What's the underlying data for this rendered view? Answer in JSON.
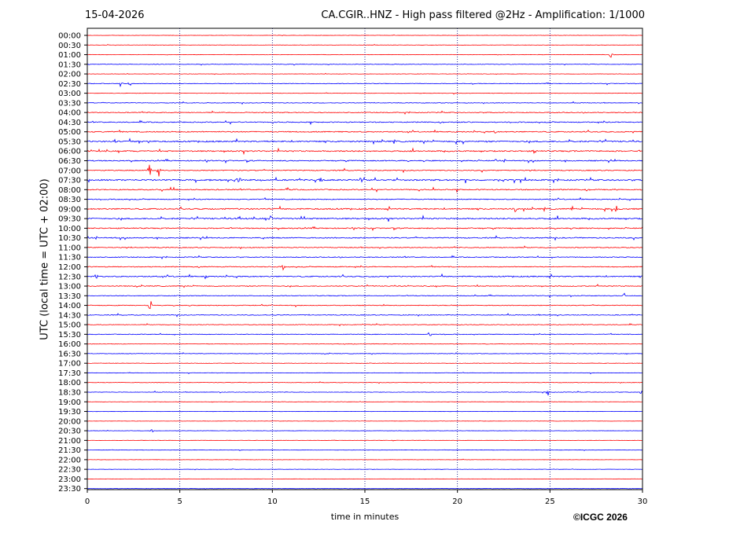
{
  "header": {
    "date": "15-04-2026",
    "title": "CA.CGIR..HNZ - High pass filtered @2Hz - Amplification: 1/1000"
  },
  "footer": {
    "copyright": "©ICGC 2026"
  },
  "colors": {
    "trace_a": "#ff0000",
    "trace_b": "#0000ff",
    "grid": "#000080",
    "frame": "#000000"
  },
  "chart_data": {
    "type": "line",
    "xlabel": "time in minutes",
    "ylabel": "UTC (local time = UTC + 02:00)",
    "xlim": [
      0,
      30
    ],
    "x_ticks": [
      "0",
      "5",
      "10",
      "15",
      "20",
      "25",
      "30"
    ],
    "vertical_grid_minutes": [
      5,
      10,
      15,
      20,
      25
    ],
    "grid": "dotted vertical",
    "row_labels": [
      "00:00",
      "00:30",
      "01:00",
      "01:30",
      "02:00",
      "02:30",
      "03:00",
      "03:30",
      "04:00",
      "04:30",
      "05:00",
      "05:30",
      "06:00",
      "06:30",
      "07:00",
      "07:30",
      "08:00",
      "08:30",
      "09:00",
      "09:30",
      "10:00",
      "10:30",
      "11:00",
      "11:30",
      "12:00",
      "12:30",
      "13:00",
      "13:30",
      "14:00",
      "14:30",
      "15:00",
      "15:30",
      "16:00",
      "16:30",
      "17:00",
      "17:30",
      "18:00",
      "18:30",
      "19:00",
      "19:30",
      "20:00",
      "20:30",
      "21:00",
      "21:30",
      "22:00",
      "22:30",
      "23:00",
      "23:30"
    ],
    "row_colors": [
      "red",
      "red",
      "red",
      "blue",
      "red",
      "blue",
      "red",
      "blue",
      "red",
      "blue",
      "red",
      "blue",
      "red",
      "blue",
      "red",
      "blue",
      "red",
      "blue",
      "red",
      "blue",
      "red",
      "blue",
      "red",
      "blue",
      "red",
      "blue",
      "red",
      "blue",
      "red",
      "blue",
      "red",
      "blue",
      "red",
      "blue",
      "red",
      "blue",
      "red",
      "blue",
      "red",
      "blue",
      "red",
      "blue",
      "red",
      "blue",
      "red",
      "blue",
      "red",
      "blue"
    ],
    "row_activity": [
      0.3,
      0.3,
      0.35,
      0.5,
      0.35,
      0.6,
      0.4,
      0.55,
      0.8,
      0.9,
      1.0,
      1.3,
      1.2,
      1.0,
      0.9,
      1.3,
      1.0,
      0.9,
      1.2,
      1.3,
      1.0,
      1.0,
      0.8,
      0.8,
      0.8,
      1.1,
      0.8,
      0.7,
      0.7,
      0.7,
      0.6,
      0.6,
      0.5,
      0.5,
      0.4,
      0.4,
      0.4,
      0.5,
      0.3,
      0.3,
      0.3,
      0.3,
      0.3,
      0.3,
      0.3,
      0.3,
      0.3,
      0.3
    ],
    "events": [
      {
        "row": "01:00",
        "minute": 28.3,
        "amplitude": 5
      },
      {
        "row": "02:30",
        "minute": 1.8,
        "amplitude": 5
      },
      {
        "row": "02:30",
        "minute": 2.3,
        "amplitude": 4
      },
      {
        "row": "05:00",
        "minute": 22.0,
        "amplitude": 3
      },
      {
        "row": "05:30",
        "minute": 1.5,
        "amplitude": 4
      },
      {
        "row": "05:30",
        "minute": 2.8,
        "amplitude": 3
      },
      {
        "row": "06:00",
        "minute": 24.2,
        "amplitude": 6
      },
      {
        "row": "07:00",
        "minute": 3.35,
        "amplitude": 10
      },
      {
        "row": "07:00",
        "minute": 3.85,
        "amplitude": 9
      },
      {
        "row": "07:30",
        "minute": 8.2,
        "amplitude": 6
      },
      {
        "row": "07:30",
        "minute": 12.6,
        "amplitude": 4
      },
      {
        "row": "07:30",
        "minute": 14.8,
        "amplitude": 5
      },
      {
        "row": "08:00",
        "minute": 10.8,
        "amplitude": 4
      },
      {
        "row": "09:00",
        "minute": 23.1,
        "amplitude": 7
      },
      {
        "row": "09:00",
        "minute": 26.2,
        "amplitude": 4
      },
      {
        "row": "09:00",
        "minute": 28.6,
        "amplitude": 5
      },
      {
        "row": "09:30",
        "minute": 9.9,
        "amplitude": 4
      },
      {
        "row": "12:00",
        "minute": 10.6,
        "amplitude": 5
      },
      {
        "row": "12:30",
        "minute": 0.5,
        "amplitude": 5
      },
      {
        "row": "12:30",
        "minute": 6.4,
        "amplitude": 4
      },
      {
        "row": "13:30",
        "minute": 29.0,
        "amplitude": 5
      },
      {
        "row": "14:00",
        "minute": 3.4,
        "amplitude": 8
      },
      {
        "row": "15:30",
        "minute": 18.5,
        "amplitude": 4
      },
      {
        "row": "18:30",
        "minute": 29.9,
        "amplitude": 5
      },
      {
        "row": "18:30",
        "minute": 24.9,
        "amplitude": 4
      },
      {
        "row": "20:30",
        "minute": 3.5,
        "amplitude": 3
      }
    ]
  }
}
